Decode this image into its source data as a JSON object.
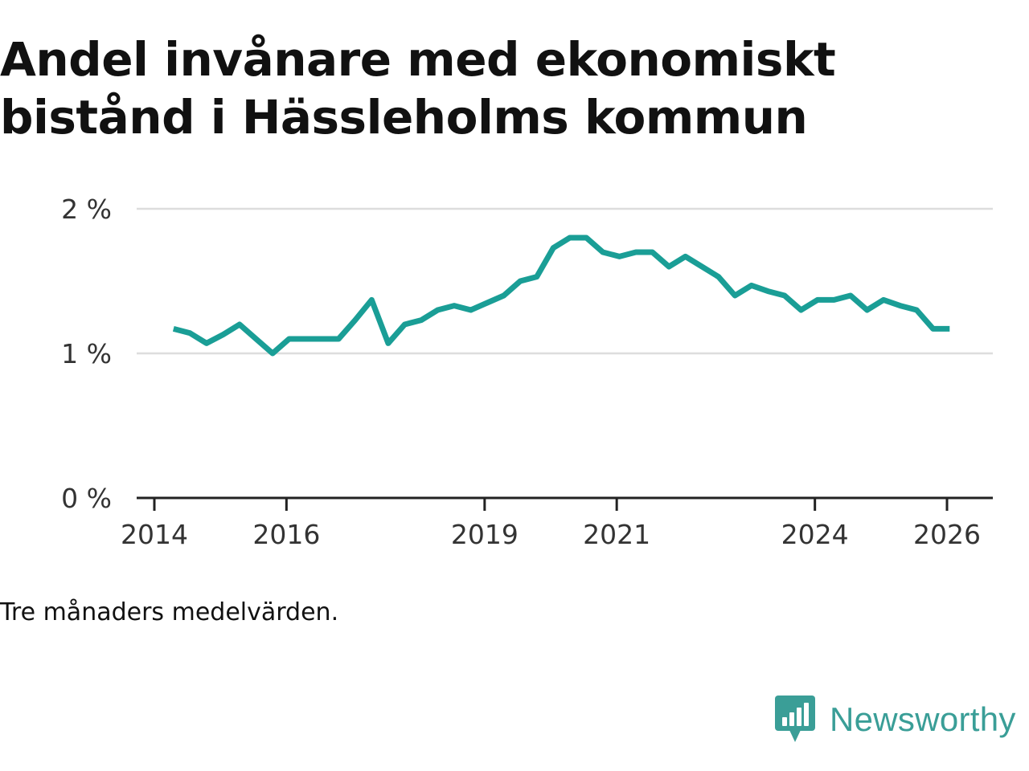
{
  "title": "Andel invånare med ekonomiskt bistånd i Hässleholms kommun",
  "caption": "Tre månaders medelvärden.",
  "brand": {
    "name": "Newsworthy",
    "icon": "newsworthy-logo-icon",
    "color": "#3a9e97"
  },
  "colors": {
    "line": "#1a9e96",
    "grid": "#dddddd",
    "axis": "#222222"
  },
  "chart_data": {
    "type": "line",
    "title": "Andel invånare med ekonomiskt bistånd i Hässleholms kommun",
    "xlabel": "",
    "ylabel": "",
    "ylim": [
      0,
      2
    ],
    "xlim": [
      2014,
      2026.5
    ],
    "y_ticks": [
      {
        "value": 0,
        "label": "0 %"
      },
      {
        "value": 1,
        "label": "1 %"
      },
      {
        "value": 2,
        "label": "2 %"
      }
    ],
    "x_ticks": [
      {
        "value": 2014,
        "label": "2014"
      },
      {
        "value": 2016,
        "label": "2016"
      },
      {
        "value": 2019,
        "label": "2019"
      },
      {
        "value": 2021,
        "label": "2021"
      },
      {
        "value": 2024,
        "label": "2024"
      },
      {
        "value": 2026,
        "label": "2026"
      }
    ],
    "grid": true,
    "series": [
      {
        "name": "Andel invånare med ekonomiskt bistånd",
        "x": [
          2014.29,
          2014.54,
          2014.79,
          2015.04,
          2015.29,
          2015.54,
          2015.79,
          2016.04,
          2016.29,
          2016.54,
          2016.79,
          2017.04,
          2017.29,
          2017.54,
          2017.79,
          2018.04,
          2018.29,
          2018.54,
          2018.79,
          2019.04,
          2019.29,
          2019.54,
          2019.79,
          2020.04,
          2020.29,
          2020.54,
          2020.79,
          2021.04,
          2021.29,
          2021.54,
          2021.79,
          2022.04,
          2022.29,
          2022.54,
          2022.79,
          2023.04,
          2023.29,
          2023.54,
          2023.79,
          2024.04,
          2024.29,
          2024.54,
          2024.79,
          2025.04,
          2025.29,
          2025.54,
          2025.79,
          2026.04
        ],
        "values": [
          1.17,
          1.14,
          1.07,
          1.13,
          1.2,
          1.1,
          1.0,
          1.1,
          1.1,
          1.1,
          1.1,
          1.23,
          1.37,
          1.07,
          1.2,
          1.23,
          1.3,
          1.33,
          1.3,
          1.35,
          1.4,
          1.5,
          1.53,
          1.73,
          1.8,
          1.8,
          1.7,
          1.67,
          1.7,
          1.7,
          1.6,
          1.67,
          1.6,
          1.53,
          1.4,
          1.47,
          1.43,
          1.4,
          1.3,
          1.37,
          1.37,
          1.4,
          1.3,
          1.37,
          1.33,
          1.3,
          1.17,
          1.17
        ]
      }
    ]
  }
}
